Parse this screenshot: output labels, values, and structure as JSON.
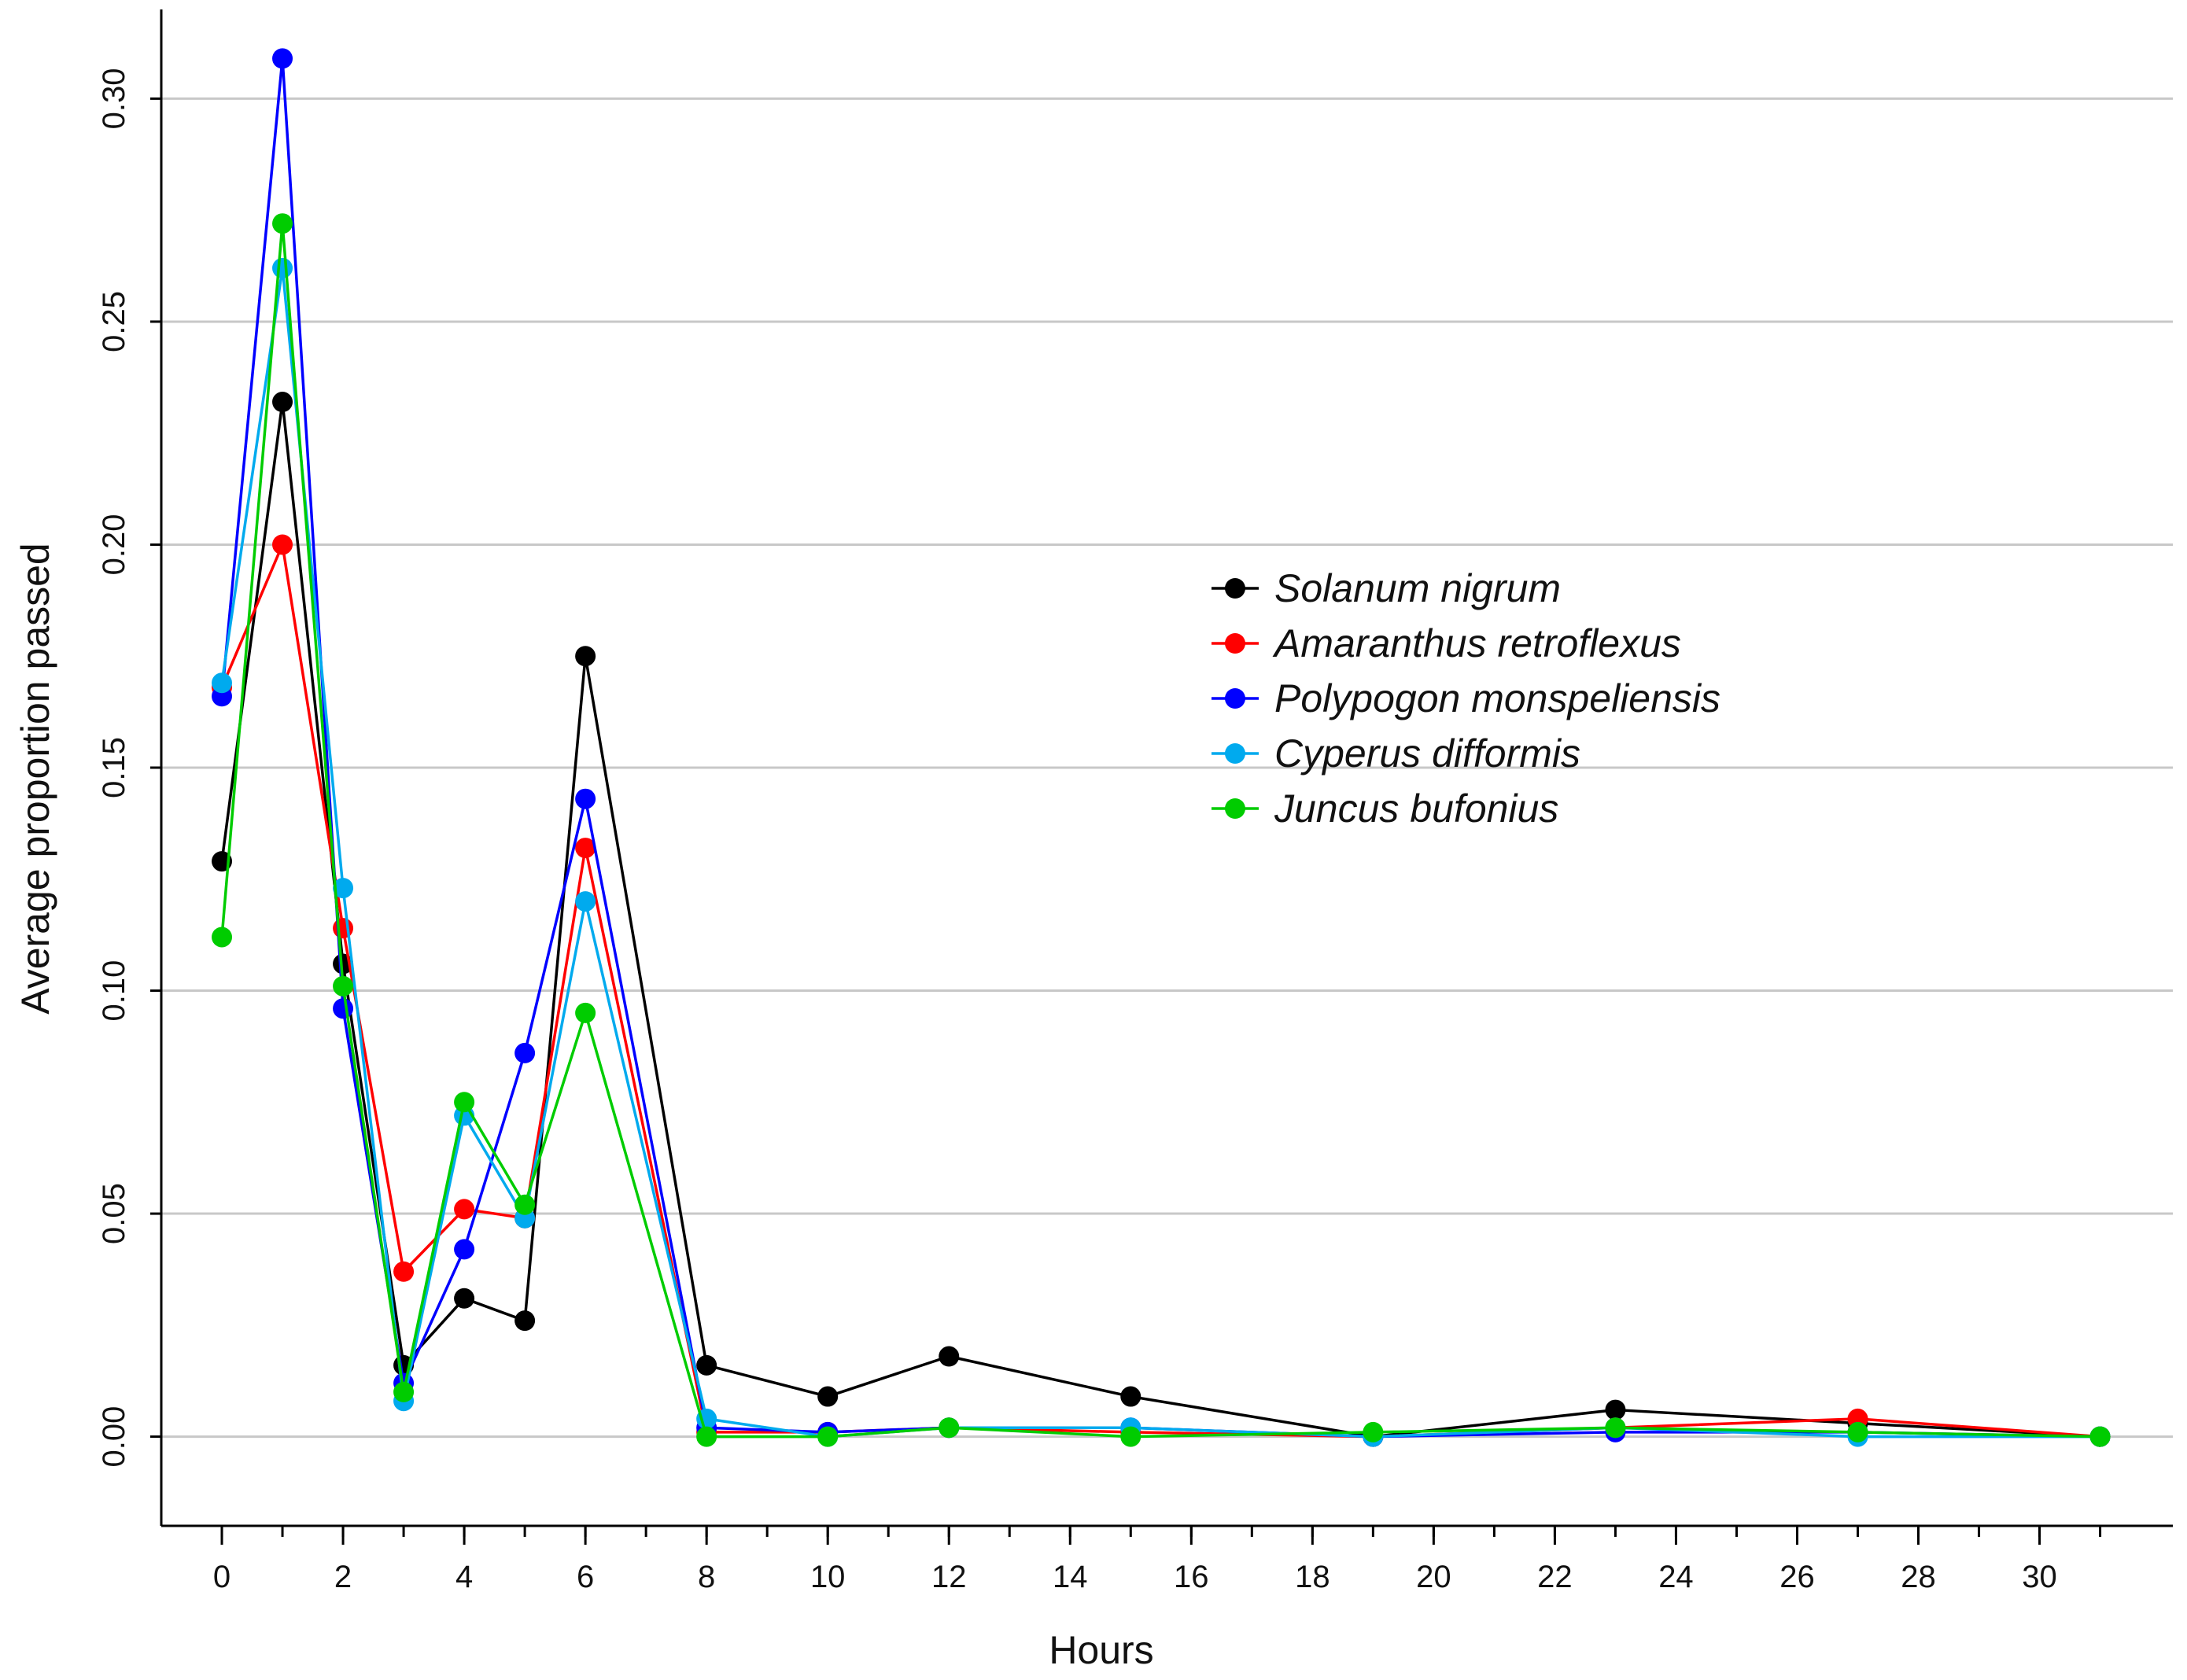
{
  "chart_data": {
    "type": "line",
    "title": "",
    "xlabel": "Hours",
    "ylabel": "Average proportion passed",
    "xlim": [
      -1,
      32.2
    ],
    "ylim": [
      -0.02,
      0.32
    ],
    "x_ticks": [
      0,
      2,
      4,
      6,
      8,
      10,
      12,
      14,
      16,
      18,
      20,
      22,
      24,
      26,
      28,
      30
    ],
    "x_tick_labels": [
      "0",
      "2",
      "4",
      "6",
      "8",
      "10",
      "12",
      "14",
      "16",
      "18",
      "20",
      "22",
      "24",
      "26",
      "28",
      "30"
    ],
    "y_ticks": [
      0.0,
      0.05,
      0.1,
      0.15,
      0.2,
      0.25,
      0.3
    ],
    "y_tick_labels": [
      "0.00",
      "0.05",
      "0.10",
      "0.15",
      "0.20",
      "0.25",
      "0.30"
    ],
    "grid": "horizontal",
    "legend_position": "center-right",
    "x": [
      0,
      1,
      2,
      3,
      4,
      5,
      6,
      8,
      10,
      12,
      15,
      19,
      23,
      27,
      31
    ],
    "series": [
      {
        "name": "Solanum nigrum",
        "color": "#000000",
        "values": [
          0.129,
          0.232,
          0.106,
          0.016,
          0.031,
          0.026,
          0.175,
          0.016,
          0.009,
          0.018,
          0.009,
          0.0,
          0.006,
          0.003,
          0.0
        ]
      },
      {
        "name": "Amaranthus retroflexus",
        "color": "#ff0000",
        "values": [
          0.168,
          0.2,
          0.114,
          0.037,
          0.051,
          0.049,
          0.132,
          0.001,
          0.001,
          0.002,
          0.001,
          0.0,
          0.002,
          0.004,
          0.0
        ]
      },
      {
        "name": "Polypogon monspeliensis",
        "color": "#0000ff",
        "values": [
          0.166,
          0.309,
          0.096,
          0.012,
          0.042,
          0.086,
          0.143,
          0.002,
          0.001,
          0.002,
          0.002,
          0.0,
          0.001,
          0.001,
          0.0
        ]
      },
      {
        "name": "Cyperus difformis",
        "color": "#00aaee",
        "values": [
          0.169,
          0.262,
          0.123,
          0.008,
          0.072,
          0.049,
          0.12,
          0.004,
          0.0,
          0.002,
          0.002,
          0.0,
          0.002,
          0.0,
          0.0
        ]
      },
      {
        "name": "Juncus bufonius",
        "color": "#00cc00",
        "values": [
          0.112,
          0.272,
          0.101,
          0.01,
          0.075,
          0.052,
          0.095,
          0.0,
          0.0,
          0.002,
          0.0,
          0.001,
          0.002,
          0.001,
          0.0
        ]
      }
    ]
  }
}
